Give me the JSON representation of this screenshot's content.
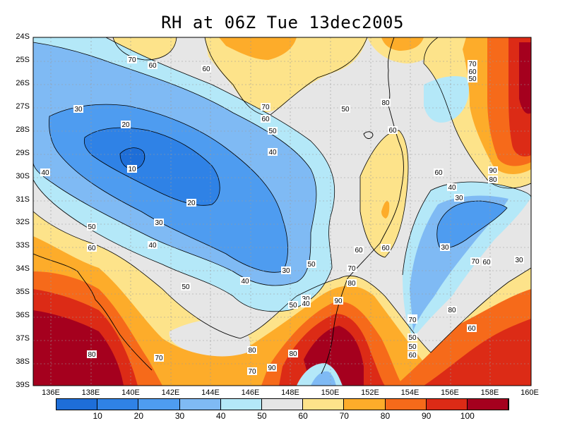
{
  "title": "RH at 06Z Tue 13dec2005",
  "lat_labels": [
    "24S",
    "25S",
    "26S",
    "27S",
    "28S",
    "29S",
    "30S",
    "31S",
    "32S",
    "33S",
    "34S",
    "35S",
    "36S",
    "37S",
    "38S",
    "39S"
  ],
  "lon_labels": [
    "136E",
    "138E",
    "140E",
    "142E",
    "144E",
    "146E",
    "148E",
    "150E",
    "152E",
    "154E",
    "156E",
    "158E",
    "160E"
  ],
  "contour_labels": [
    "70",
    "60",
    "60",
    "70",
    "60",
    "50",
    "80",
    "60",
    "70",
    "60",
    "50",
    "30",
    "20",
    "10",
    "40",
    "50",
    "40",
    "60",
    "90",
    "80",
    "40",
    "30",
    "20",
    "30",
    "30",
    "50",
    "60",
    "40",
    "30",
    "50",
    "40",
    "50",
    "30",
    "40",
    "50",
    "60",
    "70",
    "80",
    "90",
    "60",
    "80",
    "70",
    "30",
    "40",
    "50",
    "50",
    "60",
    "70",
    "80",
    "90",
    "70",
    "80",
    "60",
    "80",
    "70",
    "60"
  ],
  "colorbar": {
    "colors": [
      "#1e6ed8",
      "#2f82e6",
      "#4e9cf0",
      "#7fbaf4",
      "#b4e8f8",
      "#e6e6e6",
      "#fde38a",
      "#fdac2a",
      "#f66a1a",
      "#dc2b16",
      "#a5001e"
    ],
    "labels": [
      "10",
      "20",
      "30",
      "40",
      "50",
      "60",
      "70",
      "80",
      "90",
      "100"
    ]
  }
}
